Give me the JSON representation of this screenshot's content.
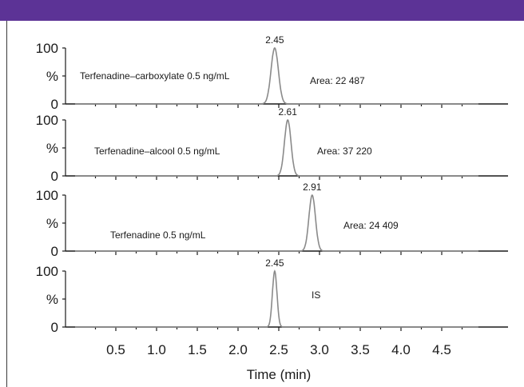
{
  "colors": {
    "banner": "#5c3396",
    "axis": "#1a1a1a",
    "trace": "#8a8a8a"
  },
  "chart_data": {
    "type": "line",
    "xlabel": "Time (min)",
    "xticks": [
      0.5,
      1.0,
      1.5,
      2.0,
      2.5,
      3.0,
      3.5,
      4.0,
      4.5
    ],
    "xtick_labels": [
      "0.5",
      "1.0",
      "1.5",
      "2.0",
      "2.5",
      "3.0",
      "3.5",
      "4.0",
      "4.5"
    ],
    "xlim": [
      0.0,
      5.0
    ],
    "ylim": [
      0,
      100
    ],
    "y_tick_labels": [
      "100",
      "%",
      "0"
    ],
    "panels": [
      {
        "name": "Terfenadine–carboxylate 0.5 ng/mL",
        "peak_label": "2.45",
        "peak_time": 2.45,
        "peak_width": 0.045,
        "area_label": "Area: 22 487"
      },
      {
        "name": "Terfenadine–alcool 0.5 ng/mL",
        "peak_label": "2.61",
        "peak_time": 2.61,
        "peak_width": 0.04,
        "area_label": "Area: 37 220"
      },
      {
        "name": "Terfenadine 0.5 ng/mL",
        "peak_label": "2.91",
        "peak_time": 2.91,
        "peak_width": 0.04,
        "area_label": "Area: 24 409"
      },
      {
        "name": "IS",
        "peak_label": "2.45",
        "peak_time": 2.45,
        "peak_width": 0.028,
        "area_label": ""
      }
    ]
  }
}
